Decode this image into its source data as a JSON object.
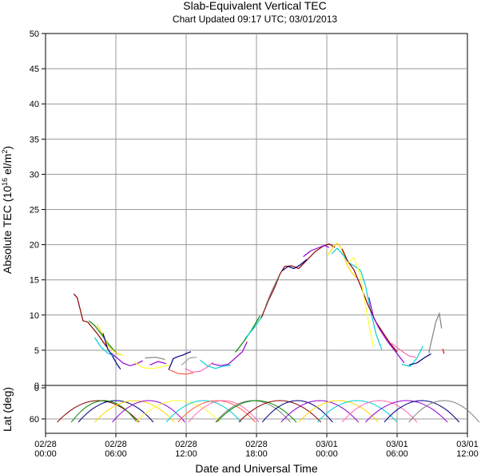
{
  "chart_data": {
    "type": "line",
    "title": "Slab-Equivalent Vertical TEC",
    "subtitle": "Chart Updated 09:17 UTC; 03/01/2013",
    "xlabel": "Date and Universal Time",
    "ylabel_main": "Absolute TEC (10",
    "ylabel_sup": "16",
    "ylabel_mid": " el/m",
    "ylabel_sup2": "2",
    "ylabel_end": ")",
    "ylabel_lower": "Lat (deg)",
    "x_ticks": [
      {
        "date": "02/28",
        "time": "00:00"
      },
      {
        "date": "02/28",
        "time": "06:00"
      },
      {
        "date": "02/28",
        "time": "12:00"
      },
      {
        "date": "02/28",
        "time": "18:00"
      },
      {
        "date": "03/01",
        "time": "00:00"
      },
      {
        "date": "03/01",
        "time": "06:00"
      },
      {
        "date": "03/01",
        "time": "12:00"
      }
    ],
    "xlim_hours": [
      0,
      36
    ],
    "ylim": [
      0,
      50
    ],
    "y_ticks": [
      "0",
      "5",
      "10",
      "15",
      "20",
      "25",
      "30",
      "35",
      "40",
      "45",
      "50"
    ],
    "lat_ticks": [
      "0",
      "60"
    ],
    "grid": true,
    "series": [
      {
        "color": "#8b0000",
        "points": [
          [
            2.4,
            13
          ],
          [
            2.7,
            12.5
          ],
          [
            3.2,
            9.2
          ],
          [
            3.6,
            9
          ],
          [
            4.4,
            7.4
          ],
          [
            5.2,
            5.5
          ]
        ]
      },
      {
        "color": "#008800",
        "points": [
          [
            3.7,
            9.2
          ],
          [
            4.2,
            8.5
          ],
          [
            4.8,
            7.2
          ],
          [
            5.4,
            5.8
          ],
          [
            6.1,
            4.5
          ]
        ]
      },
      {
        "color": "#ffd700",
        "points": [
          [
            4.4,
            8.6
          ],
          [
            4.9,
            7.2
          ],
          [
            5.4,
            5.5
          ],
          [
            6.1,
            4.5
          ],
          [
            6.6,
            4.3
          ]
        ]
      },
      {
        "color": "#000080",
        "points": [
          [
            4.9,
            7.4
          ],
          [
            5.3,
            5.2
          ],
          [
            5.7,
            4.2
          ],
          [
            6.1,
            3
          ],
          [
            6.4,
            2.3
          ]
        ]
      },
      {
        "color": "#00ced1",
        "points": [
          [
            4.2,
            6.8
          ],
          [
            4.7,
            5.5
          ],
          [
            5.3,
            4.6
          ],
          [
            5.9,
            4.1
          ]
        ]
      },
      {
        "color": "#9400d3",
        "points": [
          [
            5.6,
            4.6
          ],
          [
            6.1,
            3.9
          ],
          [
            6.6,
            3.2
          ],
          [
            7.2,
            2.8
          ],
          [
            7.8,
            3.1
          ],
          [
            8.3,
            3.5
          ]
        ]
      },
      {
        "color": "#ffff33",
        "points": [
          [
            7.6,
            3.3
          ],
          [
            8.3,
            2.5
          ],
          [
            9.2,
            2.4
          ],
          [
            10,
            2.7
          ],
          [
            10.6,
            2.9
          ]
        ]
      },
      {
        "color": "#808080",
        "points": [
          [
            8.5,
            3.9
          ],
          [
            9.4,
            4
          ],
          [
            10.2,
            3.7
          ]
        ]
      },
      {
        "color": "#000080",
        "points": [
          [
            10.5,
            2.2
          ],
          [
            10.9,
            3.8
          ],
          [
            11.3,
            4.1
          ],
          [
            11.7,
            4.3
          ],
          [
            12.1,
            4.6
          ],
          [
            12.4,
            4.8
          ]
        ]
      },
      {
        "color": "#9400d3",
        "points": [
          [
            8.9,
            2.9
          ],
          [
            9.6,
            3.4
          ],
          [
            10.3,
            3.1
          ]
        ]
      },
      {
        "color": "#ff6347",
        "points": [
          [
            10.6,
            2.2
          ],
          [
            11.3,
            1.7
          ],
          [
            12,
            1.6
          ],
          [
            12.6,
            1.8
          ]
        ]
      },
      {
        "color": "#ff69b4",
        "points": [
          [
            11.9,
            2.4
          ],
          [
            12.5,
            1.9
          ],
          [
            13.2,
            2.0
          ],
          [
            13.8,
            2.6
          ],
          [
            14.3,
            3.3
          ]
        ]
      },
      {
        "color": "#a0a0a0",
        "points": [
          [
            11.6,
            2.9
          ],
          [
            12.3,
            3.9
          ],
          [
            12.9,
            4
          ]
        ]
      },
      {
        "color": "#00ced1",
        "points": [
          [
            13.2,
            3.6
          ],
          [
            13.8,
            2.8
          ],
          [
            14.5,
            2.4
          ],
          [
            15.1,
            2.7
          ],
          [
            15.8,
            2.9
          ]
        ]
      },
      {
        "color": "#9400d3",
        "points": [
          [
            14.2,
            3.1
          ],
          [
            14.9,
            2.8
          ],
          [
            15.6,
            3.0
          ],
          [
            16.2,
            3.9
          ],
          [
            16.8,
            4.8
          ],
          [
            17.2,
            6.2
          ]
        ]
      },
      {
        "color": "#008800",
        "points": [
          [
            16.2,
            4.7
          ],
          [
            16.9,
            6.2
          ],
          [
            17.6,
            7.9
          ],
          [
            18.3,
            9.9
          ]
        ]
      },
      {
        "color": "#00ced1",
        "points": [
          [
            17.0,
            6.6
          ],
          [
            17.8,
            8.2
          ],
          [
            18.6,
            10.1
          ]
        ]
      },
      {
        "color": "#8b0000",
        "points": [
          [
            18.4,
            9.6
          ],
          [
            19.0,
            12.0
          ],
          [
            19.6,
            14.1
          ],
          [
            20.0,
            15.8
          ],
          [
            20.4,
            16.9
          ],
          [
            21.0,
            17.0
          ],
          [
            21.6,
            16.6
          ],
          [
            22.3,
            17.8
          ],
          [
            23.0,
            19.0
          ],
          [
            23.7,
            19.8
          ],
          [
            24.2,
            20.1
          ],
          [
            24.7,
            19.6
          ]
        ]
      },
      {
        "color": "#808080",
        "points": [
          [
            18.8,
            11.4
          ],
          [
            19.3,
            13.4
          ],
          [
            19.9,
            15.5
          ]
        ]
      },
      {
        "color": "#000080",
        "points": [
          [
            20.2,
            16.3
          ],
          [
            20.7,
            16.9
          ],
          [
            21.2,
            16.6
          ],
          [
            21.7,
            17.1
          ],
          [
            22.3,
            17.9
          ]
        ]
      },
      {
        "color": "#9400d3",
        "points": [
          [
            22.0,
            18.3
          ],
          [
            22.6,
            19.1
          ],
          [
            23.2,
            19.5
          ],
          [
            23.8,
            19.9
          ],
          [
            24.2,
            19.6
          ]
        ]
      },
      {
        "color": "#ffd700",
        "points": [
          [
            24.1,
            18.5
          ],
          [
            24.5,
            19.6
          ],
          [
            24.9,
            20.2
          ],
          [
            25.3,
            19.3
          ],
          [
            25.7,
            17.2
          ],
          [
            26.1,
            16.1
          ],
          [
            26.5,
            15.3
          ]
        ]
      },
      {
        "color": "#00ced1",
        "points": [
          [
            24.4,
            18.7
          ],
          [
            24.9,
            19.5
          ],
          [
            25.4,
            18.5
          ],
          [
            25.9,
            17.4
          ],
          [
            26.4,
            16.9
          ],
          [
            26.9,
            16.3
          ],
          [
            27.3,
            14.2
          ],
          [
            27.7,
            10.9
          ],
          [
            28.2,
            7.3
          ],
          [
            28.7,
            5.1
          ]
        ]
      },
      {
        "color": "#8b0000",
        "points": [
          [
            25.3,
            19.4
          ],
          [
            25.8,
            17.6
          ],
          [
            26.3,
            16.5
          ],
          [
            26.9,
            14.1
          ],
          [
            27.5,
            11.5
          ],
          [
            28.2,
            9.0
          ],
          [
            28.8,
            7.5
          ],
          [
            29.4,
            6.0
          ],
          [
            30.0,
            4.8
          ]
        ]
      },
      {
        "color": "#ffff33",
        "points": [
          [
            25.8,
            17.4
          ],
          [
            26.3,
            18.2
          ],
          [
            26.8,
            16.0
          ],
          [
            27.2,
            12.3
          ],
          [
            27.6,
            8.6
          ],
          [
            28.0,
            5.3
          ]
        ]
      },
      {
        "color": "#9400d3",
        "points": [
          [
            27.6,
            12.5
          ],
          [
            28.0,
            9.6
          ],
          [
            28.5,
            8.0
          ],
          [
            29.2,
            6.2
          ],
          [
            30.0,
            4.5
          ],
          [
            30.6,
            3.2
          ]
        ]
      },
      {
        "color": "#ff69b4",
        "points": [
          [
            29.5,
            6.0
          ],
          [
            30.3,
            5.0
          ],
          [
            31.0,
            4.2
          ],
          [
            31.6,
            4.0
          ]
        ]
      },
      {
        "color": "#00ced1",
        "points": [
          [
            30.4,
            3.0
          ],
          [
            31.1,
            2.7
          ],
          [
            31.7,
            3.9
          ],
          [
            32.2,
            5.6
          ]
        ]
      },
      {
        "color": "#000080",
        "points": [
          [
            31.0,
            2.9
          ],
          [
            31.7,
            3.2
          ],
          [
            32.3,
            3.9
          ],
          [
            32.9,
            4.5
          ]
        ]
      },
      {
        "color": "#808080",
        "points": [
          [
            32.7,
            4.6
          ],
          [
            33.0,
            6.8
          ],
          [
            33.3,
            9.0
          ],
          [
            33.6,
            10.2
          ],
          [
            33.8,
            8.1
          ]
        ]
      },
      {
        "color": "#ff0000",
        "points": [
          [
            33.9,
            5.2
          ],
          [
            34.0,
            4.5
          ]
        ]
      }
    ],
    "passes": [
      {
        "color": "#8b0000",
        "center": 4.5,
        "half": 3.5
      },
      {
        "color": "#000080",
        "center": 6.0,
        "half": 3.2
      },
      {
        "color": "#008800",
        "center": 5.0,
        "half": 2.8
      },
      {
        "color": "#ffd700",
        "center": 7.6,
        "half": 3.4
      },
      {
        "color": "#9400d3",
        "center": 8.8,
        "half": 3.1
      },
      {
        "color": "#ffff33",
        "center": 11.3,
        "half": 3.6
      },
      {
        "color": "#00ced1",
        "center": 13.5,
        "half": 3.2
      },
      {
        "color": "#ff6347",
        "center": 14.6,
        "half": 3.3
      },
      {
        "color": "#ff69b4",
        "center": 15.2,
        "half": 3.0
      },
      {
        "color": "#808080",
        "center": 17.7,
        "half": 3.2
      },
      {
        "color": "#008800",
        "center": 18.0,
        "half": 3.4
      },
      {
        "color": "#8b0000",
        "center": 20.0,
        "half": 3.5
      },
      {
        "color": "#000080",
        "center": 21.5,
        "half": 3.0
      },
      {
        "color": "#9400d3",
        "center": 23.4,
        "half": 3.3
      },
      {
        "color": "#ffd700",
        "center": 25.0,
        "half": 3.4
      },
      {
        "color": "#00ced1",
        "center": 26.6,
        "half": 3.4
      },
      {
        "color": "#ff69b4",
        "center": 28.5,
        "half": 3.2
      },
      {
        "color": "#9400d3",
        "center": 30.8,
        "half": 3.5
      },
      {
        "color": "#000080",
        "center": 32.1,
        "half": 3.2
      },
      {
        "color": "#808080",
        "center": 34.0,
        "half": 3.0
      }
    ]
  }
}
